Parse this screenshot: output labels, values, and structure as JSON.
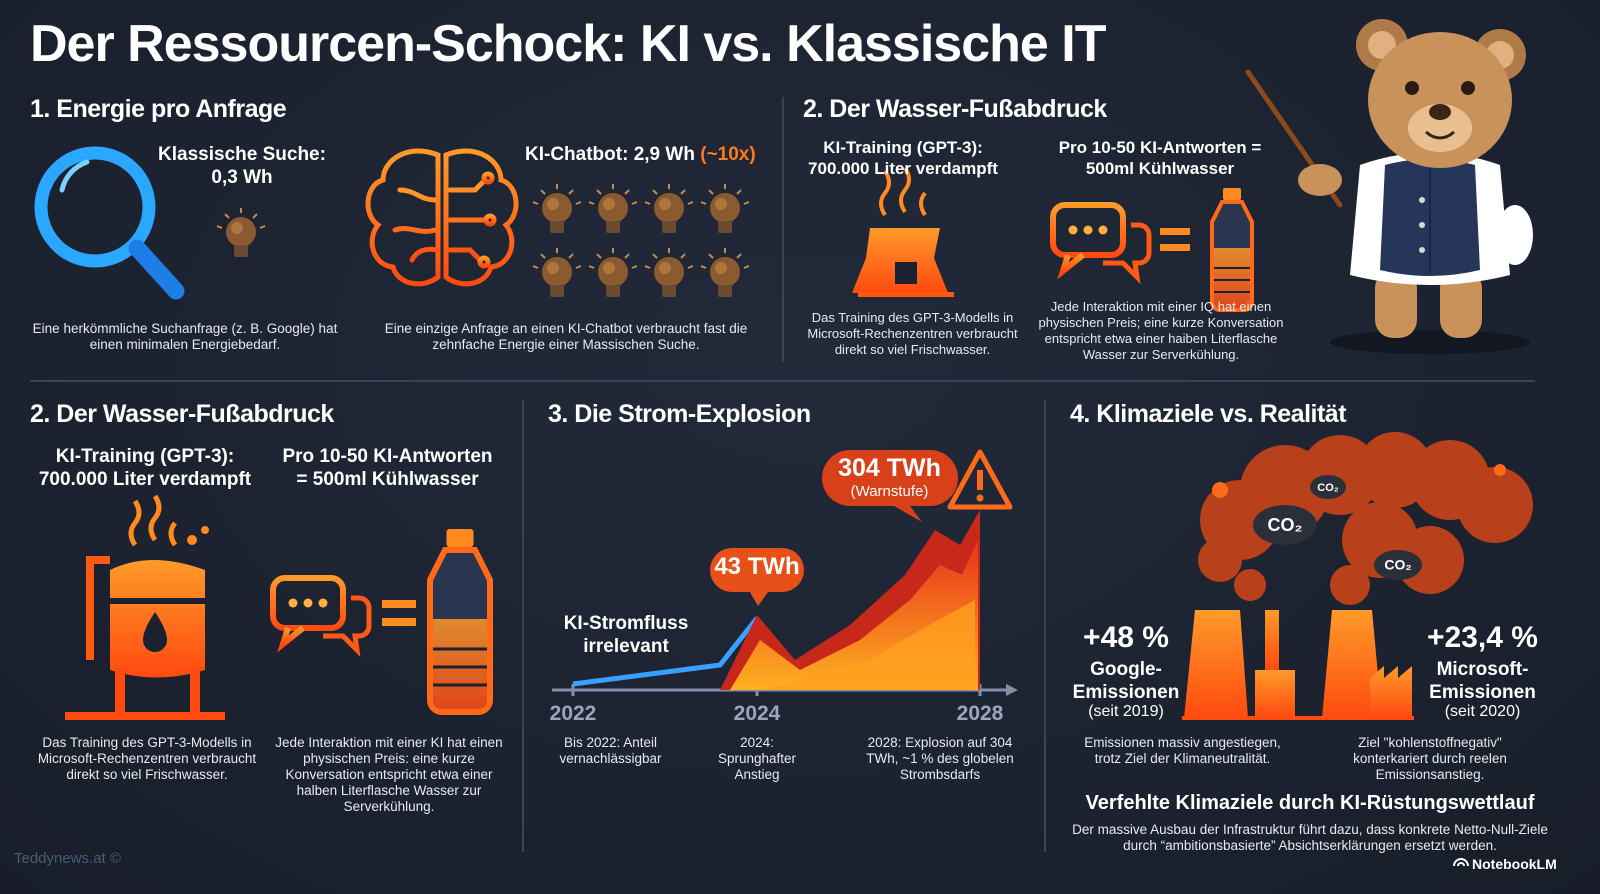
{
  "title": "Der Ressourcen-Schock: KI vs. Klassische IT",
  "energy": {
    "heading": "1. Energie pro Anfrage",
    "search_label": "Klassische Suche:",
    "search_value": "0,3 Wh",
    "search_caption": "Eine herkömmliche Suchanfrage (z. B. Google) hat einen minimalen Energiebedarf.",
    "chatbot_label": "KI-Chatbot: 2,9 Wh",
    "chatbot_factor": "(~10x)",
    "chatbot_caption": "Eine einzige Anfrage an einen KI-Chatbot verbraucht fast die zehnfache Energie einer Massischen Suche."
  },
  "water_top": {
    "heading": "2. Der Wasser-Fußabdruck",
    "training_label": "KI-Training (GPT-3): 700.000 Liter verdampft",
    "answers_label": "Pro 10-50 KI-Antworten = 500ml Kühlwasser",
    "training_caption": "Das Training des GPT-3-Modells in Microsoft-Rechenzentren verbraucht direkt so viel Frischwasser.",
    "answers_caption": "Jede Interaktion mit einer IQ hat einen physischen Preis; eine kurze Konversation entspricht etwa einer haiben Literflasche Wasser zur Serverkühlung."
  },
  "water": {
    "heading": "2. Der Wasser-Fußabdruck",
    "training_label": "KI-Training (GPT-3): 700.000 Liter verdampft",
    "answers_label": "Pro 10-50 KI-Antworten = 500ml Kühlwasser",
    "training_caption": "Das Training des GPT-3-Modells in Microsoft-Rechenzentren verbraucht direkt so viel Frischwasser.",
    "answers_caption": "Jede Interaktion mit einer KI hat einen physischen Preis: eine kurze Konversation entspricht etwa einer halben Literflasche Wasser zur Serverkühlung."
  },
  "power": {
    "heading": "3. Die Strom-Explosion",
    "low_label": "KI-Stromfluss irrelevant",
    "callout_2024": "43 TWh",
    "callout_2028": "304 TWh",
    "callout_2028_note": "(Warnstufe)",
    "years": [
      "2022",
      "2024",
      "2028"
    ],
    "captions": [
      "Bis 2022: Anteil vernachlässigbar",
      "2024: Sprunghafter Anstieg",
      "2028: Explosion auf 304 TWh, ~1 % des globelen Strombsdarfs"
    ]
  },
  "climate": {
    "heading": "4. Klimaziele vs. Realität",
    "google_change": "+48 %",
    "google_label": "Google-Emissionen",
    "google_since": "(seit 2019)",
    "microsoft_change": "+23,4 %",
    "microsoft_label": "Microsoft-Emissionen",
    "microsoft_since": "(seit 2020)",
    "google_caption": "Emissionen massiv angestiegen, trotz Ziel der Klimaneutralität.",
    "microsoft_caption": "Ziel \"kohlenstoffnegativ\" konterkariert durch reelen Emissionsanstieg.",
    "conclusion_title": "Verfehlte Klimaziele durch KI-Rüstungswettlauf",
    "conclusion_text": "Der massive Ausbau der Infrastruktur führt dazu, dass konkrete Netto-Null-Ziele durch “ambitionsbasierte” Absichtserklärungen ersetzt werden.",
    "co2": [
      "CO₂",
      "CO₂",
      "CO₂"
    ]
  },
  "footer": {
    "credit": "Teddynews.at ©",
    "brand": "NotebookLM"
  }
}
